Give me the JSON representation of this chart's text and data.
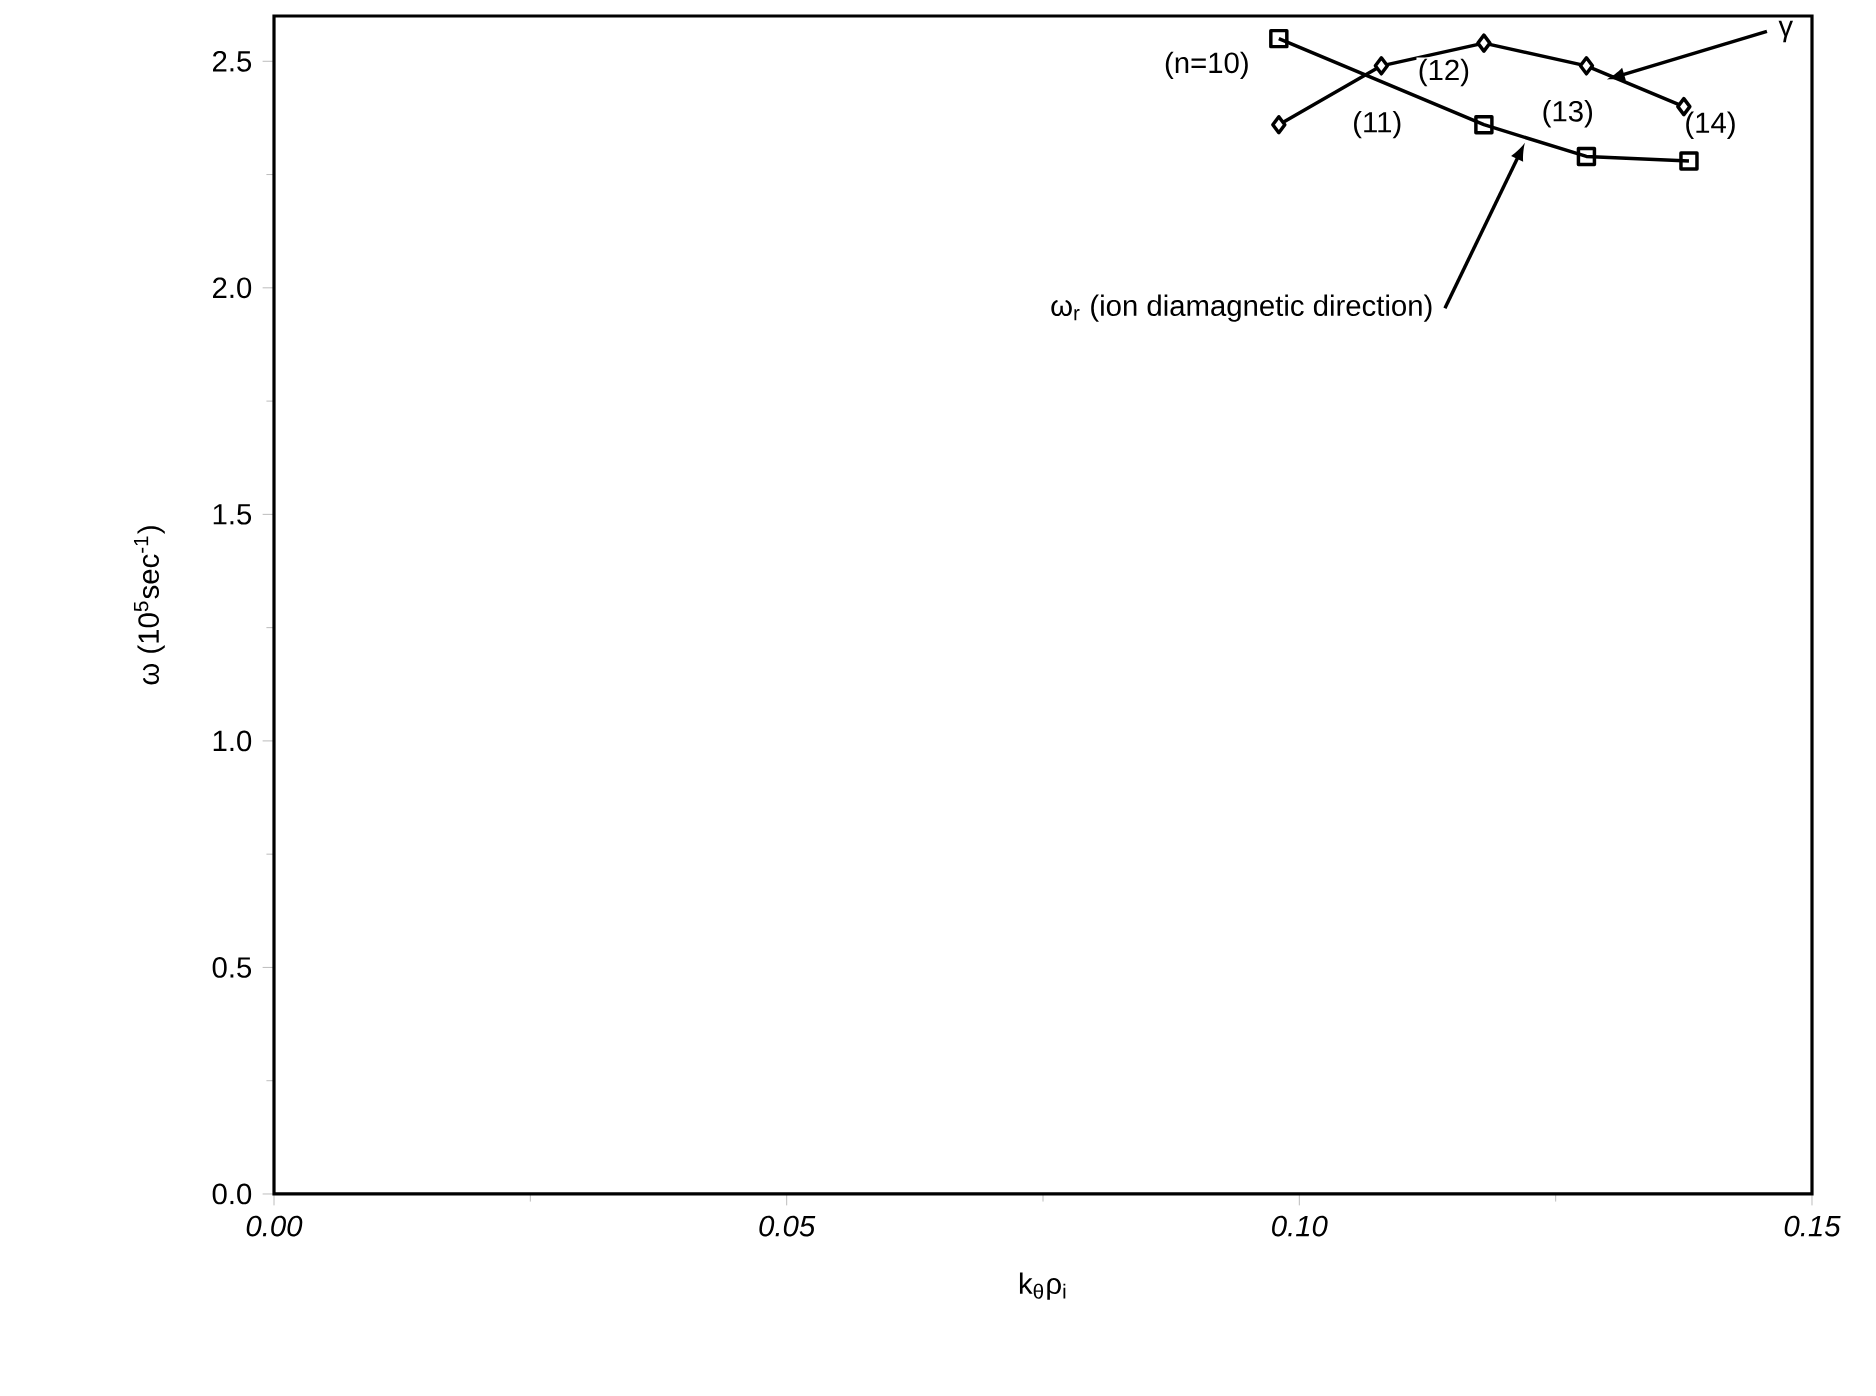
{
  "chart_data": {
    "type": "line",
    "xlabel": "k$_{θ}$ρ$_{i}$",
    "ylabel": "ω (10$^{5}$sec$^{-1}$)",
    "xlim": [
      0,
      0.15
    ],
    "ylim": [
      0,
      2.6
    ],
    "xticks": [
      {
        "value": 0,
        "label": "0.00"
      },
      {
        "value": 0.05,
        "label": "0.05"
      },
      {
        "value": 0.1,
        "label": "0.10"
      },
      {
        "value": 0.15,
        "label": "0.15"
      }
    ],
    "yticks": [
      {
        "value": 0,
        "label": "0.0"
      },
      {
        "value": 0.5,
        "label": "0.5"
      },
      {
        "value": 1,
        "label": "1.0"
      },
      {
        "value": 1.5,
        "label": "1.5"
      },
      {
        "value": 2,
        "label": "2.0"
      },
      {
        "value": 2.5,
        "label": "2.5"
      }
    ],
    "series": [
      {
        "color": "#000000",
        "marker": "square",
        "x": [
          0.098,
          0.118,
          0.128,
          0.138
        ],
        "values": [
          2.55,
          2.36,
          2.29,
          2.28
        ]
      },
      {
        "color": "#000000",
        "marker": "diamond",
        "x": [
          0.098,
          0.108,
          0.118,
          0.128,
          0.1375
        ],
        "values": [
          2.36,
          2.49,
          2.54,
          2.49,
          2.4
        ]
      }
    ],
    "annotations": [
      {
        "text": "(n=10)",
        "x": 0.098,
        "y": 2.55
      },
      {
        "text": "(11)",
        "x": 0.118,
        "y": 2.36
      },
      {
        "text": "(12)",
        "x": 0.118,
        "y": 2.54
      },
      {
        "text": "(13)",
        "x": 0.128,
        "y": 2.29
      },
      {
        "text": "(14)",
        "x": 0.1375,
        "y": 2.4
      },
      {
        "text": "γ",
        "x": 0.13,
        "y": 2.46
      },
      {
        "text": "ω$_{r}$ (ion diamagnetic direction)",
        "x": 0.122,
        "y": 2.32
      }
    ]
  }
}
